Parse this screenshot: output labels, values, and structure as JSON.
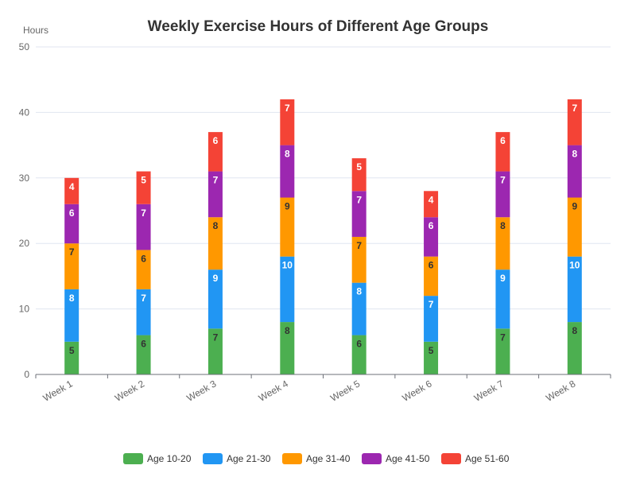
{
  "chart_data": {
    "type": "bar",
    "stacked": true,
    "title": "Weekly Exercise Hours of Different Age Groups",
    "ylabel": "Hours",
    "ylim": [
      0,
      50
    ],
    "yticks": [
      0,
      10,
      20,
      30,
      40,
      50
    ],
    "grid": true,
    "legend_position": "bottom",
    "categories": [
      "Week 1",
      "Week 2",
      "Week 3",
      "Week 4",
      "Week 5",
      "Week 6",
      "Week 7",
      "Week 8"
    ],
    "series": [
      {
        "name": "Age 10-20",
        "color": "#4caf50",
        "label_color": "#333333",
        "values": [
          5,
          6,
          7,
          8,
          6,
          5,
          7,
          8
        ]
      },
      {
        "name": "Age 21-30",
        "color": "#2196f3",
        "label_color": "#ffffff",
        "values": [
          8,
          7,
          9,
          10,
          8,
          7,
          9,
          10
        ]
      },
      {
        "name": "Age 31-40",
        "color": "#ff9800",
        "label_color": "#333333",
        "values": [
          7,
          6,
          8,
          9,
          7,
          6,
          8,
          9
        ]
      },
      {
        "name": "Age 41-50",
        "color": "#9c27b0",
        "label_color": "#ffffff",
        "values": [
          6,
          7,
          7,
          8,
          7,
          6,
          7,
          8
        ]
      },
      {
        "name": "Age 51-60",
        "color": "#f44336",
        "label_color": "#ffffff",
        "values": [
          4,
          5,
          6,
          7,
          5,
          4,
          6,
          7
        ]
      }
    ]
  }
}
